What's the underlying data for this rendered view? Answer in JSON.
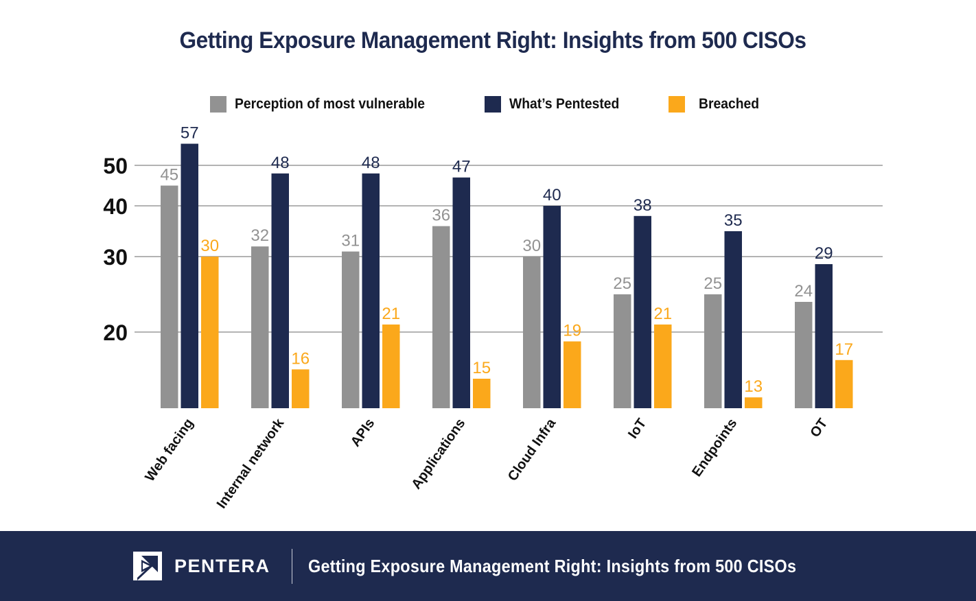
{
  "chart_data": {
    "type": "bar",
    "title": "Getting Exposure Management Right: Insights from 500 CISOs",
    "xlabel": "",
    "ylabel": "",
    "categories": [
      "Web facing",
      "Internal network",
      "APIs",
      "Applications",
      "Cloud Infra",
      "IoT",
      "Endpoints",
      "OT"
    ],
    "series": [
      {
        "name": "Perception of most vulnerable",
        "color": "#929292",
        "values": [
          45,
          32,
          31,
          36,
          30,
          25,
          25,
          24
        ]
      },
      {
        "name": "What’s Pentested",
        "color": "#1e2a4f",
        "values": [
          57,
          48,
          48,
          47,
          40,
          38,
          35,
          29
        ]
      },
      {
        "name": "Breached",
        "color": "#fba81b",
        "values": [
          30,
          16,
          21,
          15,
          19,
          21,
          13,
          17
        ]
      }
    ],
    "yticks": [
      20,
      30,
      40,
      50
    ],
    "y_scale": "non-linear (log-like)",
    "grid": true,
    "legend_position": "top-center",
    "data_labels": true
  },
  "footer": {
    "brand": "PENTERA",
    "text": "Getting Exposure Management Right: Insights from 500 CISOs",
    "background": "#1e2a4f"
  }
}
